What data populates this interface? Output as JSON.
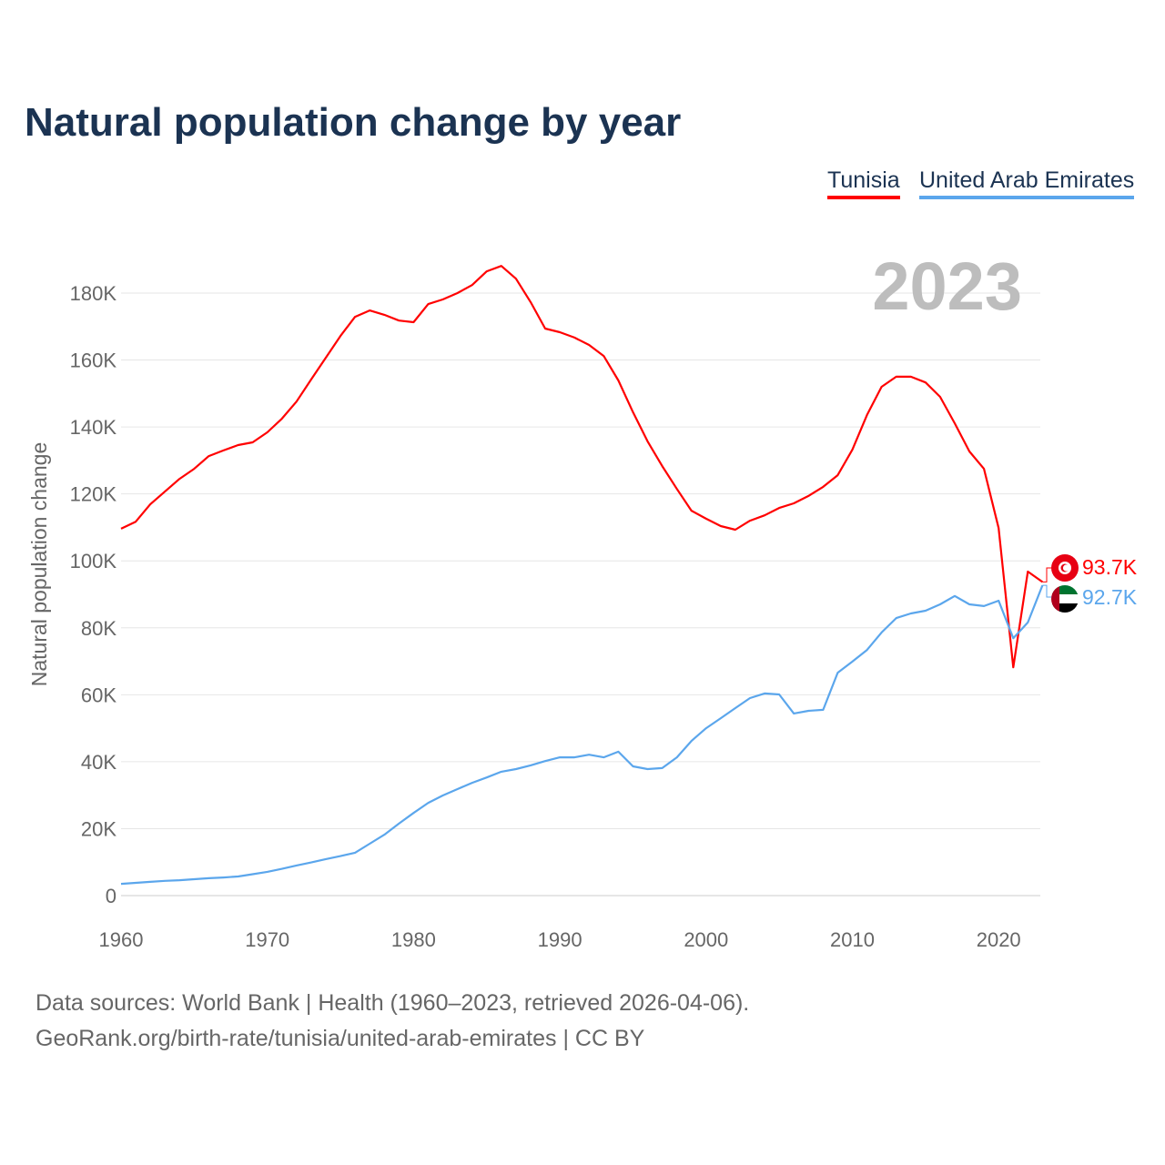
{
  "chart_data": {
    "type": "line",
    "title": "Natural population change by year",
    "ylabel": "Natural population change",
    "xlabel": "",
    "year_watermark": "2023",
    "ylim": [
      0,
      190000
    ],
    "xlim": [
      1960,
      2023
    ],
    "x_ticks": [
      1960,
      1970,
      1980,
      1990,
      2000,
      2010,
      2020
    ],
    "y_ticks": [
      0,
      20000,
      40000,
      60000,
      80000,
      100000,
      120000,
      140000,
      160000,
      180000
    ],
    "y_tick_labels": [
      "0",
      "20K",
      "40K",
      "60K",
      "80K",
      "100K",
      "120K",
      "140K",
      "160K",
      "180K"
    ],
    "x_start": 1960,
    "series": [
      {
        "name": "Tunisia",
        "color": "#ff0000",
        "end_label": "93.7K",
        "flag": "tunisia-flag",
        "values": [
          109.6,
          111.7,
          116.9,
          120.7,
          124.5,
          127.5,
          131.3,
          133,
          134.6,
          135.4,
          138.4,
          142.5,
          147.6,
          154.2,
          160.7,
          167.2,
          172.9,
          174.8,
          173.5,
          171.8,
          171.3,
          176.7,
          178.1,
          180,
          182.4,
          186.5,
          188.1,
          184.3,
          177.3,
          169.4,
          168.3,
          166.7,
          164.5,
          161.2,
          153.9,
          144.4,
          135.7,
          128.3,
          121.5,
          115,
          112.6,
          110.4,
          109.3,
          112,
          113.6,
          115.8,
          117.2,
          119.4,
          122.1,
          125.6,
          133.2,
          143.6,
          152,
          155,
          155,
          153.3,
          149,
          141.1,
          132.7,
          127.5,
          109.8,
          68.2,
          96.8,
          93.7
        ]
      },
      {
        "name": "United Arab Emirates",
        "color": "#5ba6ec",
        "end_label": "92.7K",
        "flag": "uae-flag",
        "values": [
          3.5,
          3.8,
          4.1,
          4.4,
          4.6,
          4.9,
          5.2,
          5.4,
          5.7,
          6.4,
          7.1,
          8,
          9,
          9.9,
          10.9,
          11.8,
          12.8,
          15.5,
          18.2,
          21.5,
          24.7,
          27.7,
          29.9,
          31.8,
          33.7,
          35.3,
          37,
          37.8,
          38.9,
          40.2,
          41.3,
          41.3,
          42.1,
          41.3,
          43,
          38.6,
          37.8,
          38.1,
          41.3,
          46.2,
          50,
          53,
          56,
          59,
          60.4,
          60.1,
          54.4,
          55.2,
          55.5,
          66.6,
          69.9,
          73.4,
          78.6,
          82.9,
          84.3,
          85.1,
          87,
          89.5,
          87,
          86.5,
          88.1,
          76.9,
          81.6,
          92.7
        ]
      }
    ],
    "value_unit": "thousands",
    "legend_position": "top-right"
  },
  "sources": {
    "line1": "Data sources: World Bank | Health (1960–2023, retrieved 2026-04-06).",
    "line2": "GeoRank.org/birth-rate/tunisia/united-arab-emirates | CC BY"
  }
}
